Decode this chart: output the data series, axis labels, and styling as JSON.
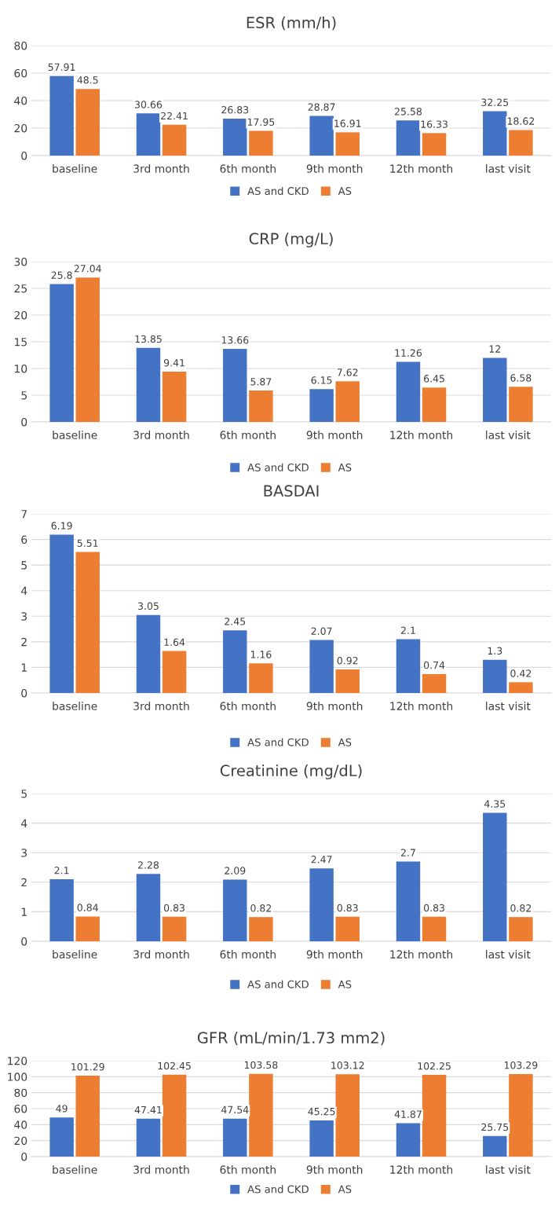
{
  "chart_data": [
    {
      "type": "bar",
      "title": "ESR (mm/h)",
      "categories": [
        "baseline",
        "3rd month",
        "6th month",
        "9th month",
        "12th month",
        "last visit"
      ],
      "series": [
        {
          "name": "AS and CKD",
          "color": "#4472c4",
          "values": [
            57.91,
            30.66,
            26.83,
            28.87,
            25.58,
            32.25
          ]
        },
        {
          "name": "AS",
          "color": "#ed7d31",
          "values": [
            48.5,
            22.41,
            17.95,
            16.91,
            16.33,
            18.62
          ]
        }
      ],
      "ylim": [
        0,
        80
      ],
      "yticks": [
        0,
        20,
        40,
        60,
        80
      ],
      "grid": "y",
      "legend": "bottom",
      "data_labels": true
    },
    {
      "type": "bar",
      "title": "CRP (mg/L)",
      "categories": [
        "baseline",
        "3rd month",
        "6th month",
        "9th month",
        "12th month",
        "last visit"
      ],
      "series": [
        {
          "name": "AS and CKD",
          "color": "#4472c4",
          "values": [
            25.8,
            13.85,
            13.66,
            6.15,
            11.26,
            12
          ]
        },
        {
          "name": "AS",
          "color": "#ed7d31",
          "values": [
            27.04,
            9.41,
            5.87,
            7.62,
            6.45,
            6.58
          ]
        }
      ],
      "ylim": [
        0,
        30
      ],
      "yticks": [
        0,
        5,
        10,
        15,
        20,
        25,
        30
      ],
      "grid": "y",
      "legend": "bottom",
      "data_labels": true
    },
    {
      "type": "bar",
      "title": "BASDAI",
      "categories": [
        "baseline",
        "3rd month",
        "6th month",
        "9th month",
        "12th month",
        "last visit"
      ],
      "series": [
        {
          "name": "AS and CKD",
          "color": "#4472c4",
          "values": [
            6.19,
            3.05,
            2.45,
            2.07,
            2.1,
            1.3
          ]
        },
        {
          "name": "AS",
          "color": "#ed7d31",
          "values": [
            5.51,
            1.64,
            1.16,
            0.92,
            0.74,
            0.42
          ]
        }
      ],
      "ylim": [
        0,
        7
      ],
      "yticks": [
        0,
        1,
        2,
        3,
        4,
        5,
        6,
        7
      ],
      "grid": "y",
      "legend": "bottom",
      "data_labels": true
    },
    {
      "type": "bar",
      "title": "Creatinine (mg/dL)",
      "categories": [
        "baseline",
        "3rd month",
        "6th month",
        "9th month",
        "12th month",
        "last visit"
      ],
      "series": [
        {
          "name": "AS and CKD",
          "color": "#4472c4",
          "values": [
            2.1,
            2.28,
            2.09,
            2.47,
            2.7,
            4.35
          ]
        },
        {
          "name": "AS",
          "color": "#ed7d31",
          "values": [
            0.84,
            0.83,
            0.82,
            0.83,
            0.83,
            0.82
          ]
        }
      ],
      "ylim": [
        0,
        5
      ],
      "yticks": [
        0,
        1,
        2,
        3,
        4,
        5
      ],
      "grid": "y",
      "legend": "bottom",
      "data_labels": true
    },
    {
      "type": "bar",
      "title": "GFR (mL/min/1.73 mm2)",
      "categories": [
        "baseline",
        "3rd month",
        "6th month",
        "9th month",
        "12th month",
        "last visit"
      ],
      "series": [
        {
          "name": "AS and CKD",
          "color": "#4472c4",
          "values": [
            49,
            47.41,
            47.54,
            45.25,
            41.87,
            25.75
          ]
        },
        {
          "name": "AS",
          "color": "#ed7d31",
          "values": [
            101.29,
            102.45,
            103.58,
            103.12,
            102.25,
            103.29
          ]
        }
      ],
      "ylim": [
        0,
        120
      ],
      "yticks": [
        0,
        20,
        40,
        60,
        80,
        100,
        120
      ],
      "grid": "y",
      "legend": "bottom",
      "data_labels": true
    }
  ]
}
